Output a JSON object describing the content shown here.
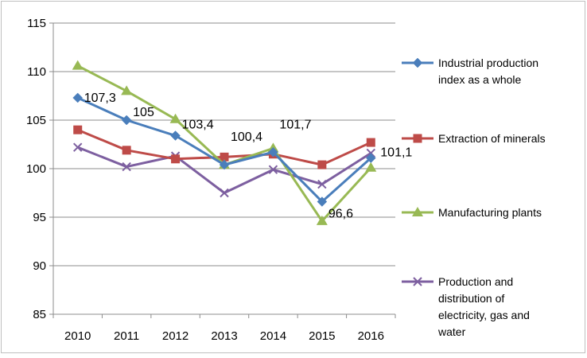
{
  "chart_data": {
    "type": "line",
    "title": "",
    "xlabel": "",
    "ylabel": "",
    "ylim": [
      85,
      115
    ],
    "yticks": [
      "85",
      "90",
      "95",
      "100",
      "105",
      "110",
      "115"
    ],
    "categories": [
      "2010",
      "2011",
      "2012",
      "2013",
      "2014",
      "2015",
      "2016"
    ],
    "grid": "horizontal",
    "legend_position": "right",
    "series": [
      {
        "name_lines": [
          "Industrial production",
          "index as a whole"
        ],
        "color": "#4a7ebb",
        "marker": "diamond",
        "values": [
          107.3,
          105.0,
          103.4,
          100.4,
          101.7,
          96.6,
          101.1
        ]
      },
      {
        "name_lines": [
          "Extraction of minerals"
        ],
        "color": "#be4b48",
        "marker": "square",
        "values": [
          104.0,
          101.9,
          101.0,
          101.2,
          101.5,
          100.4,
          102.7
        ]
      },
      {
        "name_lines": [
          "Manufacturing plants"
        ],
        "color": "#98b954",
        "marker": "triangle",
        "values": [
          110.6,
          108.0,
          105.1,
          100.4,
          102.1,
          94.6,
          100.1
        ]
      },
      {
        "name_lines": [
          "Production and",
          "distribution of",
          "electricity, gas and",
          "water"
        ],
        "color": "#7d5fa0",
        "marker": "x",
        "values": [
          102.2,
          100.2,
          101.3,
          97.5,
          99.9,
          98.4,
          101.6
        ]
      }
    ],
    "data_labels": [
      {
        "text": "107,3",
        "series": 0,
        "index": 0
      },
      {
        "text": "105",
        "series": 0,
        "index": 1
      },
      {
        "text": "103,4",
        "series": 0,
        "index": 2
      },
      {
        "text": "100,4",
        "series": 0,
        "index": 3
      },
      {
        "text": "101,7",
        "series": 0,
        "index": 4
      },
      {
        "text": "96,6",
        "series": 0,
        "index": 5
      },
      {
        "text": "101,1",
        "series": 0,
        "index": 6
      }
    ]
  }
}
